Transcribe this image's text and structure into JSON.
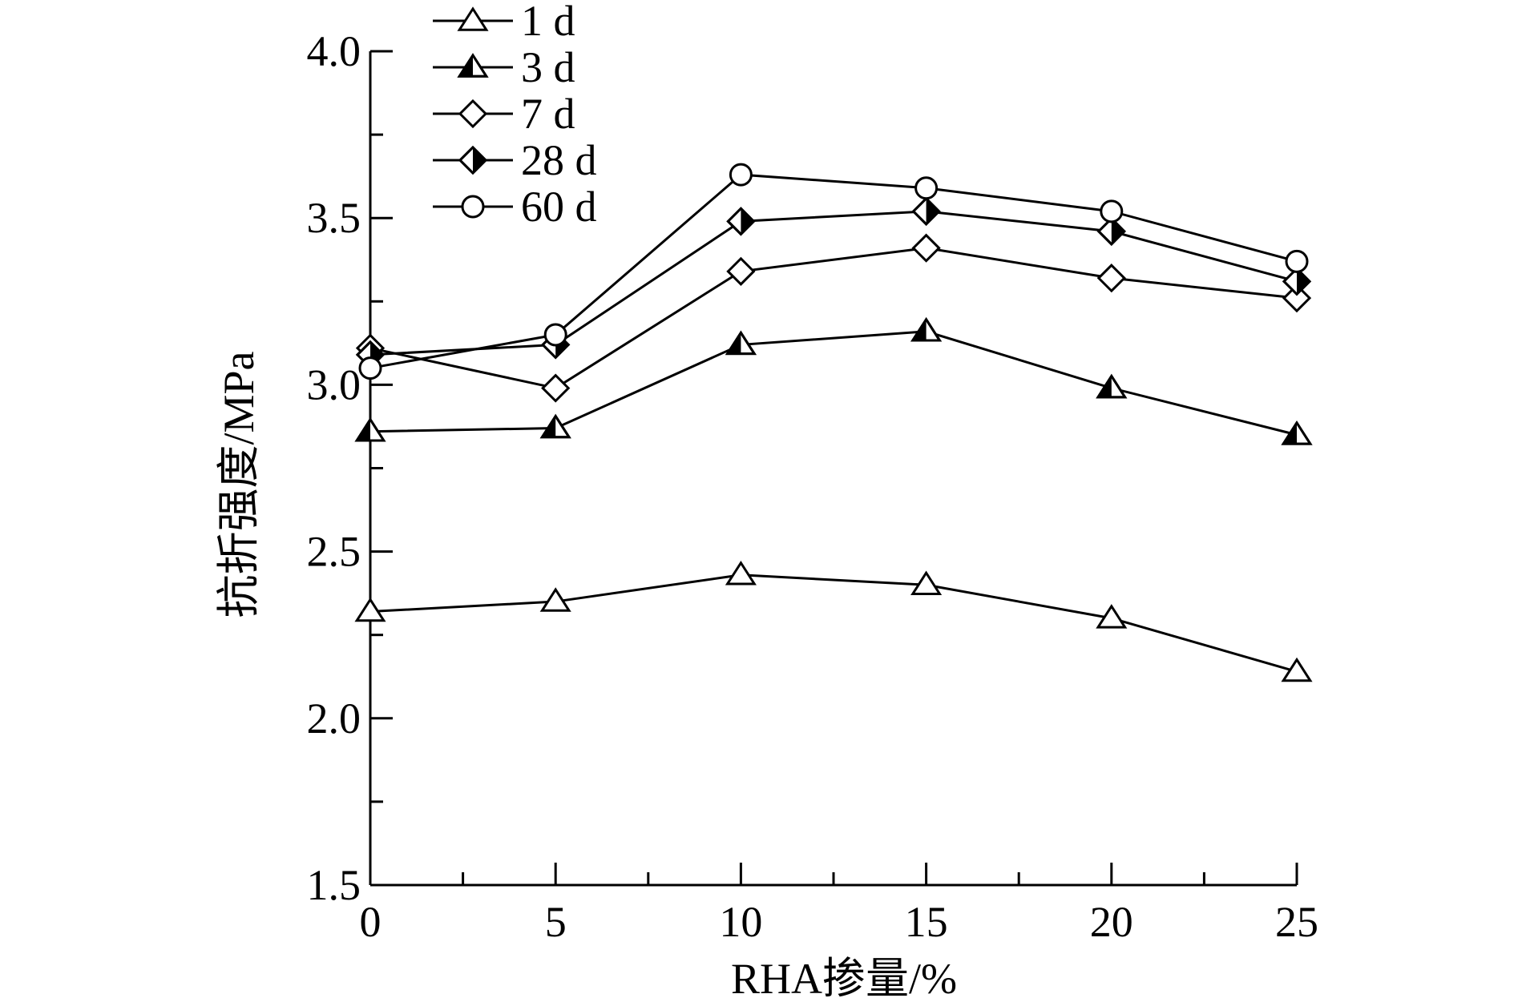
{
  "chart_data": {
    "type": "line",
    "xlabel": "RHA掺量/%",
    "ylabel": "抗折强度/MPa",
    "x": [
      0,
      5,
      10,
      15,
      20,
      25
    ],
    "xticks": [
      "0",
      "5",
      "10",
      "15",
      "20",
      "25"
    ],
    "yticks": [
      "1.5",
      "2.0",
      "2.5",
      "3.0",
      "3.5",
      "4.0"
    ],
    "xlim": [
      0,
      25
    ],
    "ylim": [
      1.5,
      4.0
    ],
    "grid": false,
    "legend_position": "top-left",
    "series": [
      {
        "name": "1 d",
        "marker": "triangle-open",
        "values": [
          2.32,
          2.35,
          2.43,
          2.4,
          2.3,
          2.14
        ]
      },
      {
        "name": "3 d",
        "marker": "triangle-half",
        "values": [
          2.86,
          2.87,
          3.12,
          3.16,
          2.99,
          2.85
        ]
      },
      {
        "name": "7 d",
        "marker": "diamond-open",
        "values": [
          3.11,
          2.99,
          3.34,
          3.41,
          3.32,
          3.26
        ]
      },
      {
        "name": "28 d",
        "marker": "diamond-half",
        "values": [
          3.09,
          3.12,
          3.49,
          3.52,
          3.46,
          3.31
        ]
      },
      {
        "name": "60 d",
        "marker": "circle-open",
        "values": [
          3.05,
          3.15,
          3.63,
          3.59,
          3.52,
          3.37
        ]
      }
    ]
  }
}
